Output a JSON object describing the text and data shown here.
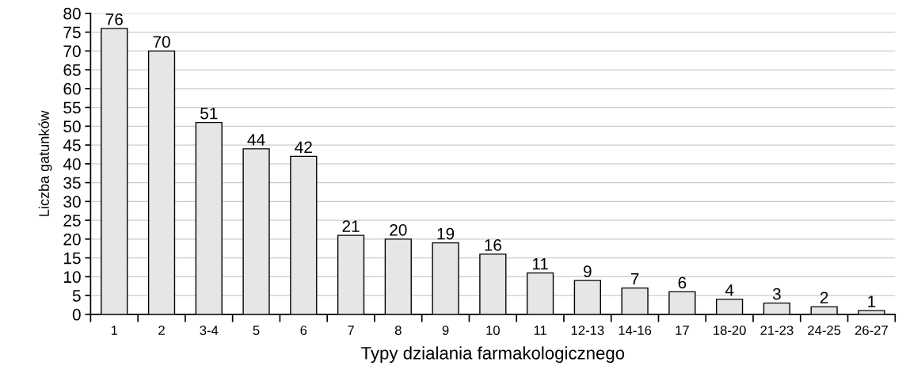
{
  "chart_data": {
    "type": "bar",
    "xlabel": "Typy dzialania farmakologicznego",
    "ylabel": "Liczba gatunków",
    "categories": [
      "1",
      "2",
      "3-4",
      "5",
      "6",
      "7",
      "8",
      "9",
      "10",
      "11",
      "12-13",
      "14-16",
      "17",
      "18-20",
      "21-23",
      "24-25",
      "26-27"
    ],
    "values": [
      76,
      70,
      51,
      44,
      42,
      21,
      20,
      19,
      16,
      11,
      9,
      7,
      6,
      4,
      3,
      2,
      1
    ],
    "color": "#e6e6e6",
    "ylim": [
      0,
      80
    ],
    "yticks": [
      0,
      5,
      10,
      15,
      20,
      25,
      30,
      35,
      40,
      45,
      50,
      55,
      60,
      65,
      70,
      75,
      80
    ],
    "grid": "y",
    "data_labels": true,
    "legend": false
  }
}
